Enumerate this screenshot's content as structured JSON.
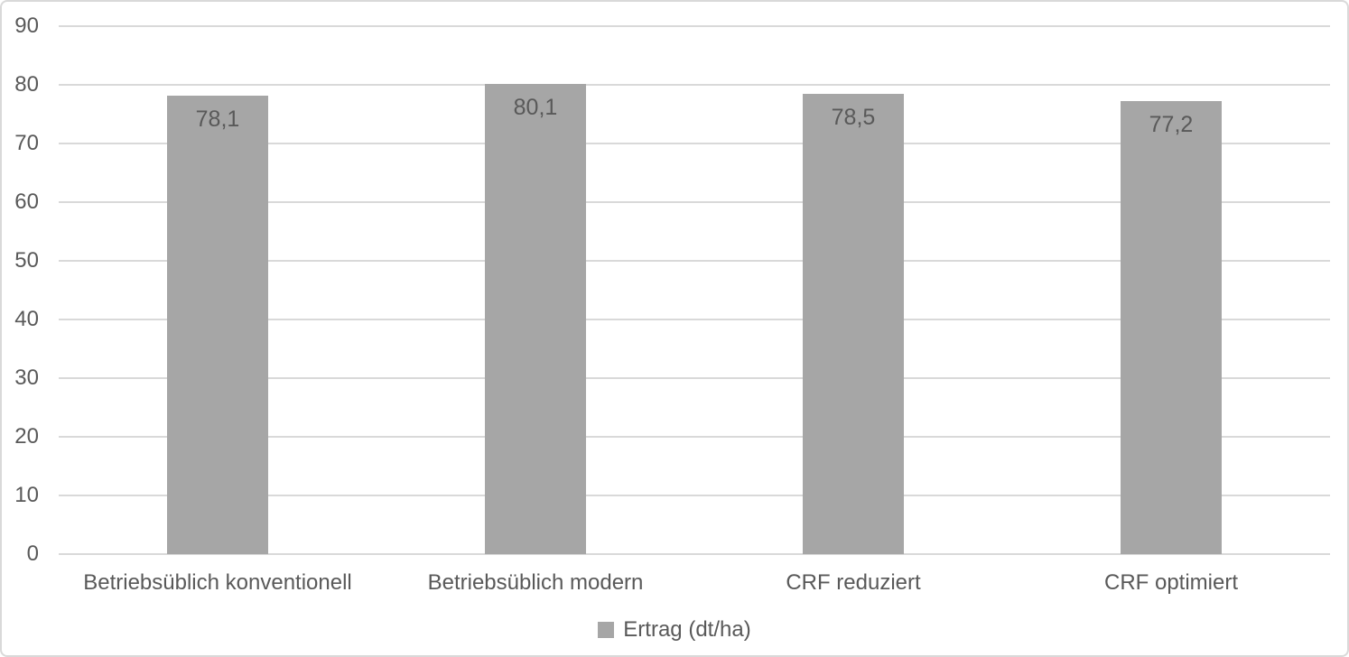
{
  "chart_data": {
    "type": "bar",
    "title": "",
    "categories": [
      "Betriebsüblich konventionell",
      "Betriebsüblich modern",
      "CRF reduziert",
      "CRF optimiert"
    ],
    "values": [
      78.1,
      80.1,
      78.5,
      77.2
    ],
    "value_labels": [
      "78,1",
      "80,1",
      "78,5",
      "77,2"
    ],
    "series_name": "Ertrag (dt/ha)",
    "xlabel": "",
    "ylabel": "",
    "ylim": [
      0,
      90
    ],
    "yticks": [
      0,
      10,
      20,
      30,
      40,
      50,
      60,
      70,
      80,
      90
    ],
    "grid": true,
    "legend_position": "bottom",
    "bar_color": "#a6a6a6",
    "gridline_color": "#d9d9d9",
    "text_color": "#595959",
    "border_color": "#d9d9d9",
    "background_color": "#ffffff"
  }
}
